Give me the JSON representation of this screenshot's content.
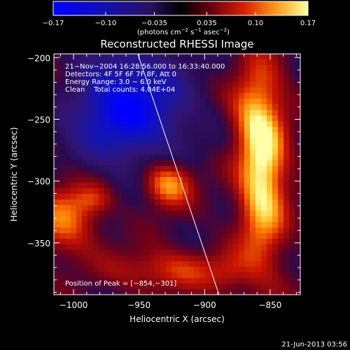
{
  "chart_data": {
    "type": "heatmap",
    "title": "Reconstructed RHESSI Image",
    "xlabel": "Heliocentric X (arcsec)",
    "ylabel": "Heliocentric Y (arcsec)",
    "xlim": [
      -1015,
      -827
    ],
    "ylim": [
      -392,
      -197
    ],
    "x_ticks": [
      -1000,
      -950,
      -900,
      -850
    ],
    "y_ticks": [
      -200,
      -250,
      -300,
      -350
    ],
    "x_tick_labels": [
      "−1000",
      "−950",
      "−900",
      "−850"
    ],
    "y_tick_labels": [
      "−200",
      "−250",
      "−300",
      "−350"
    ],
    "colorbar": {
      "range": [
        -0.17,
        0.17
      ],
      "ticks": [
        -0.17,
        -0.1,
        -0.035,
        0.035,
        0.1,
        0.17
      ],
      "tick_labels": [
        "−0.17",
        "−0.10",
        "−0.035",
        "0.035",
        "0.10",
        "0.17"
      ],
      "label_main": "(photons cm",
      "label_exp1": "−2",
      "label_mid": " s",
      "label_exp2": "−1",
      "label_mid2": " asec",
      "label_exp3": "−2",
      "label_end": ")"
    },
    "info_lines": [
      "21−Nov−2004 16:28:56.000 to 16:33:40.000",
      "Detectors: 4F 5F 6F 7F 8F, Att 0",
      "Energy Range: 3.0 − 6.0 keV",
      "Clean    Total counts: 4.04E+04"
    ],
    "peak_text": "Position of Peak = [−854,−301]",
    "peak": [
      -854,
      -301
    ],
    "sources": [
      {
        "x": -856,
        "y": -290,
        "sx": 13,
        "sy": 55,
        "amp": 0.17
      },
      {
        "x": -868,
        "y": -240,
        "sx": 12,
        "sy": 18,
        "amp": 0.05
      },
      {
        "x": -928,
        "y": -302,
        "sx": 13,
        "sy": 13,
        "amp": 0.13
      },
      {
        "x": -1006,
        "y": -330,
        "sx": 18,
        "sy": 22,
        "amp": 0.1
      },
      {
        "x": -928,
        "y": -372,
        "sx": 30,
        "sy": 12,
        "amp": 0.08
      },
      {
        "x": -985,
        "y": -315,
        "sx": 10,
        "sy": 8,
        "amp": 0.045
      },
      {
        "x": -880,
        "y": -375,
        "sx": 12,
        "sy": 12,
        "amp": 0.04
      },
      {
        "x": -960,
        "y": -240,
        "sx": 30,
        "sy": 30,
        "amp": -0.17
      },
      {
        "x": -1010,
        "y": -215,
        "sx": 20,
        "sy": 15,
        "amp": 0.03
      }
    ],
    "limb_line": [
      [
        -951,
        -197
      ],
      [
        -889,
        -392
      ]
    ]
  },
  "footer": {
    "timestamp": "21-Jun-2013 03:56"
  },
  "colors": {
    "background": "#000000",
    "text": "#ffffff"
  }
}
